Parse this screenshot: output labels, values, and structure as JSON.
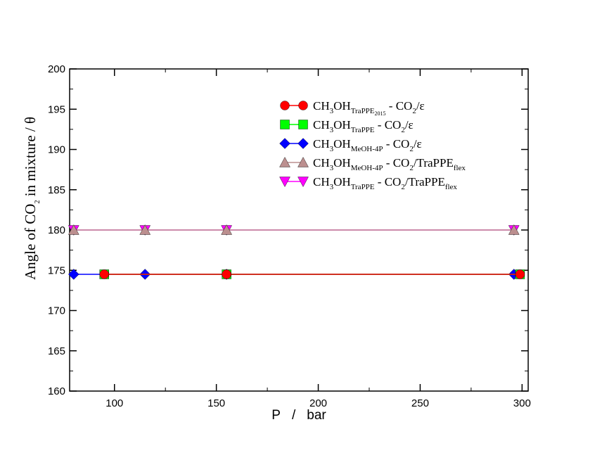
{
  "chart_data": {
    "type": "line",
    "xlabel": {
      "var": "P",
      "sep": "/",
      "unit": "bar"
    },
    "ylabel": {
      "prefix": "Angle of CO",
      "sub": "2",
      "suffix": " in mixture  /   θ"
    },
    "xlim": [
      78,
      303
    ],
    "ylim": [
      160,
      200
    ],
    "xticks": [
      100,
      150,
      200,
      250,
      300
    ],
    "yticks": [
      160,
      165,
      170,
      175,
      180,
      185,
      190,
      195,
      200
    ],
    "grid": false,
    "legend_position": "top-right",
    "series": [
      {
        "id": "tp2015-eps",
        "legend": {
          "base": "CH",
          "s1": "3",
          "mid": "OH",
          "s2": "TraPPE",
          "s3": "2015",
          "tail": " - CO",
          "s4": "2",
          "tail2": "/ε",
          "s5": ""
        },
        "color": "#ff0000",
        "marker": "circle",
        "x": [
          95,
          155,
          299
        ],
        "y": [
          174.5,
          174.5,
          174.5
        ]
      },
      {
        "id": "tp-eps",
        "legend": {
          "base": "CH",
          "s1": "3",
          "mid": "OH",
          "s2": "TraPPE",
          "s3": "",
          "tail": " - CO",
          "s4": "2",
          "tail2": "/ε",
          "s5": ""
        },
        "color": "#00ff00",
        "marker": "square",
        "x": [
          95,
          155,
          299
        ],
        "y": [
          174.5,
          174.5,
          174.5
        ]
      },
      {
        "id": "meoh-eps",
        "legend": {
          "base": "CH",
          "s1": "3",
          "mid": "OH",
          "s2": "MeOH-4P",
          "s3": "",
          "tail": " - CO",
          "s4": "2",
          "tail2": "/ε",
          "s5": ""
        },
        "color": "#0000ff",
        "marker": "diamond",
        "x": [
          80,
          115,
          155,
          296
        ],
        "y": [
          174.5,
          174.5,
          174.5,
          174.5
        ]
      },
      {
        "id": "meoh-flex",
        "legend": {
          "base": "CH",
          "s1": "3",
          "mid": "OH",
          "s2": "MeOH-4P",
          "s3": "",
          "tail": " - CO",
          "s4": "2",
          "tail2": "/TraPPE",
          "s5": "flex"
        },
        "color": "#bc8f8f",
        "marker": "triangle-up",
        "x": [
          80,
          115,
          155,
          296
        ],
        "y": [
          180,
          180,
          180,
          180
        ]
      },
      {
        "id": "tp-flex",
        "legend": {
          "base": "CH",
          "s1": "3",
          "mid": "OH",
          "s2": "TraPPE",
          "s3": "",
          "tail": " - CO",
          "s4": "2",
          "tail2": "/TraPPE",
          "s5": "flex"
        },
        "color": "#ff00ff",
        "marker": "triangle-down",
        "x": [
          80,
          115,
          155,
          296
        ],
        "y": [
          180,
          180,
          180,
          180
        ]
      }
    ]
  }
}
